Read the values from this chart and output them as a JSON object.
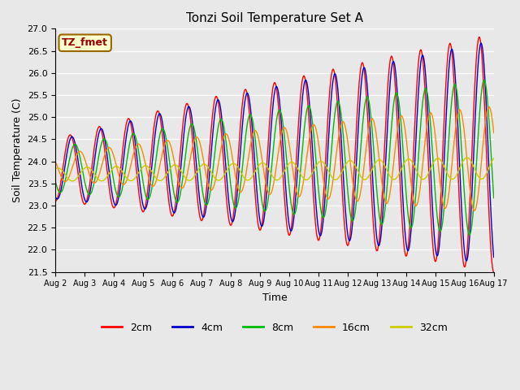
{
  "title": "Tonzi Soil Temperature Set A",
  "xlabel": "Time",
  "ylabel": "Soil Temperature (C)",
  "ylim": [
    21.5,
    27.0
  ],
  "background_color": "#e8e8e8",
  "plot_bg_color": "#e8e8e8",
  "grid_color": "white",
  "annotation_text": "TZ_fmet",
  "annotation_bg": "#ffffcc",
  "annotation_border": "#996600",
  "annotation_text_color": "#990000",
  "tick_labels": [
    "Aug 2",
    "Aug 3",
    "Aug 4",
    "Aug 5",
    "Aug 6",
    "Aug 7",
    "Aug 8",
    "Aug 9",
    "Aug 10",
    "Aug 11",
    "Aug 12",
    "Aug 13",
    "Aug 14",
    "Aug 15",
    "Aug 16",
    "Aug 17"
  ],
  "tick_positions": [
    0,
    24,
    48,
    72,
    96,
    120,
    144,
    168,
    192,
    216,
    240,
    264,
    288,
    312,
    336,
    360
  ],
  "legend_entries": [
    "2cm",
    "4cm",
    "8cm",
    "16cm",
    "32cm"
  ],
  "line_colors": [
    "#ff0000",
    "#0000cc",
    "#00bb00",
    "#ff8800",
    "#cccc00"
  ],
  "n_points": 721,
  "hours_per_day": 24,
  "num_days": 15
}
